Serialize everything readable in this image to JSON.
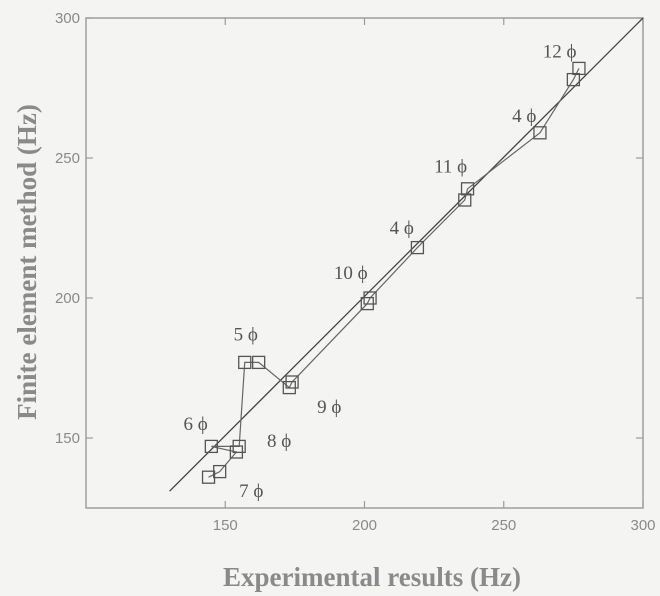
{
  "chart_data": {
    "type": "scatter",
    "title": "",
    "xlabel": "Experimental results (Hz)",
    "ylabel": "Finite element method (Hz)",
    "xlim": [
      100,
      300
    ],
    "ylim": [
      125,
      300
    ],
    "x_ticks": [
      "150",
      "200",
      "250",
      "300"
    ],
    "y_ticks": [
      "150",
      "200",
      "250",
      "300"
    ],
    "grid": false,
    "series": [
      {
        "points": [
          {
            "x": 144,
            "y": 136
          },
          {
            "x": 148,
            "y": 138
          },
          {
            "x": 154,
            "y": 145
          },
          {
            "x": 145,
            "y": 147
          },
          {
            "x": 155,
            "y": 147
          },
          {
            "x": 157,
            "y": 177
          },
          {
            "x": 162,
            "y": 177
          },
          {
            "x": 173,
            "y": 168
          },
          {
            "x": 174,
            "y": 170
          },
          {
            "x": 201,
            "y": 198
          },
          {
            "x": 202,
            "y": 200
          },
          {
            "x": 219,
            "y": 218
          },
          {
            "x": 236,
            "y": 235
          },
          {
            "x": 237,
            "y": 239
          },
          {
            "x": 263,
            "y": 259
          },
          {
            "x": 275,
            "y": 278
          },
          {
            "x": 277,
            "y": 282
          }
        ]
      }
    ],
    "reference_line": {
      "x": [
        130,
        300
      ],
      "y": [
        131,
        300
      ]
    },
    "mode_labels": [
      {
        "text": "6 ϕ",
        "x": 135,
        "y": 155
      },
      {
        "text": "7 ϕ",
        "x": 155,
        "y": 131
      },
      {
        "text": "8 ϕ",
        "x": 165,
        "y": 149
      },
      {
        "text": "5 ϕ",
        "x": 153,
        "y": 187
      },
      {
        "text": "9 ϕ",
        "x": 183,
        "y": 161
      },
      {
        "text": "10 ϕ",
        "x": 189,
        "y": 209
      },
      {
        "text": "4 ϕ",
        "x": 209,
        "y": 225
      },
      {
        "text": "11 ϕ",
        "x": 225,
        "y": 247
      },
      {
        "text": "4 ϕ",
        "x": 253,
        "y": 265
      },
      {
        "text": "12 ϕ",
        "x": 264,
        "y": 288
      }
    ]
  }
}
